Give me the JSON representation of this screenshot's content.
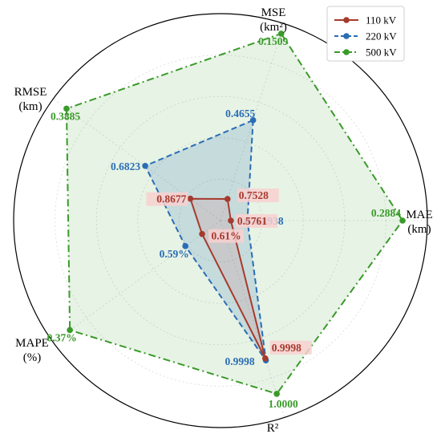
{
  "chart_data": {
    "type": "radar",
    "axes": [
      {
        "label_lines": [
          "MSE",
          "(km²)"
        ]
      },
      {
        "label_lines": [
          "MAE",
          "(km)"
        ]
      },
      {
        "label_lines": [
          "R²"
        ]
      },
      {
        "label_lines": [
          "MAPE",
          "(%)"
        ]
      },
      {
        "label_lines": [
          "RMSE",
          "(km)"
        ]
      }
    ],
    "series": [
      {
        "name": "500 kV",
        "color": "#3a9a2a",
        "fill": "#3a9a2a",
        "line_style": "dashdot",
        "labels": [
          "0.1509",
          "0.2884",
          "1.0000",
          "0.37%",
          "0.3885"
        ],
        "radii": [
          0.95,
          0.88,
          0.88,
          0.9,
          0.92
        ]
      },
      {
        "name": "220 kV",
        "color": "#2a6db5",
        "fill": "#2a6db5",
        "line_style": "dashed",
        "labels": [
          "0.4655",
          "0.4938",
          "0.9998",
          "0.59%",
          "0.6823"
        ],
        "radii": [
          0.51,
          0.13,
          0.71,
          0.21,
          0.45
        ]
      },
      {
        "name": "110 kV",
        "color": "#a63a2e",
        "fill": "#d97a7a",
        "line_style": "solid",
        "labels": [
          "0.7528",
          "0.5761",
          "0.9998",
          "0.61%",
          "0.8677"
        ],
        "radii": [
          0.11,
          0.05,
          0.7,
          0.11,
          0.18
        ]
      }
    ],
    "legend": {
      "placement": "top-right",
      "entries": [
        "110 kV",
        "220 kV",
        "500 kV"
      ]
    },
    "grid": true
  }
}
